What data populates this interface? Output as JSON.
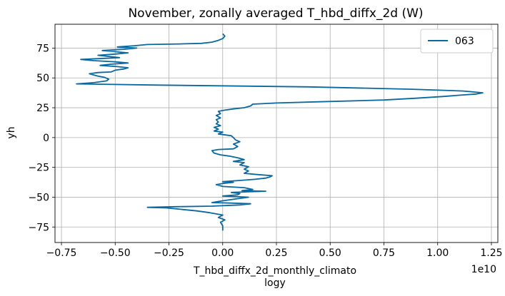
{
  "chart_data": {
    "type": "line",
    "title": "November, zonally averaged T_hbd_diffx_2d (W)",
    "xlabel": "T_hbd_diffx_2d_monthly_climato",
    "xlabel2": "logy",
    "ylabel": "yh",
    "x_offset_text": "1e10",
    "xlim": [
      -0.78,
      1.28
    ],
    "ylim": [
      -88,
      95
    ],
    "x_scale": 10000000000.0,
    "xticks": [
      -0.75,
      -0.5,
      -0.25,
      0.0,
      0.25,
      0.5,
      0.75,
      1.0,
      1.25
    ],
    "xtick_labels": [
      "−0.75",
      "−0.50",
      "−0.25",
      "0.00",
      "0.25",
      "0.50",
      "0.75",
      "1.00",
      "1.25"
    ],
    "yticks": [
      -75,
      -50,
      -25,
      0,
      25,
      50,
      75
    ],
    "ytick_labels": [
      "−75",
      "−50",
      "−25",
      "0",
      "25",
      "50",
      "75"
    ],
    "grid": true,
    "legend_position": "top-right",
    "series": [
      {
        "name": "063",
        "color": "#0868a0",
        "points": [
          [
            0.0,
            -78
          ],
          [
            0.0,
            -74
          ],
          [
            -0.01,
            -71
          ],
          [
            0.01,
            -69
          ],
          [
            -0.02,
            -67
          ],
          [
            0.0,
            -65
          ],
          [
            -0.06,
            -63
          ],
          [
            -0.12,
            -61.5
          ],
          [
            -0.26,
            -59
          ],
          [
            -0.35,
            -58.5
          ],
          [
            -0.22,
            -58
          ],
          [
            -0.05,
            -57.5
          ],
          [
            0.08,
            -56.5
          ],
          [
            0.13,
            -55.5
          ],
          [
            0.05,
            -55
          ],
          [
            -0.05,
            -54.5
          ],
          [
            0.0,
            -53
          ],
          [
            0.08,
            -51
          ],
          [
            0.12,
            -50
          ],
          [
            0.0,
            -49
          ],
          [
            0.07,
            -48
          ],
          [
            0.08,
            -47
          ],
          [
            0.04,
            -46
          ],
          [
            0.12,
            -45.5
          ],
          [
            0.2,
            -45
          ],
          [
            0.09,
            -44.5
          ],
          [
            0.14,
            -43.5
          ],
          [
            0.1,
            -42
          ],
          [
            0.0,
            -41
          ],
          [
            -0.03,
            -39.5
          ],
          [
            0.0,
            -38.5
          ],
          [
            0.05,
            -37.5
          ],
          [
            0.0,
            -37
          ],
          [
            0.08,
            -36
          ],
          [
            0.15,
            -35
          ],
          [
            0.2,
            -34
          ],
          [
            0.22,
            -33
          ],
          [
            0.23,
            -32
          ],
          [
            0.16,
            -31
          ],
          [
            0.1,
            -30
          ],
          [
            0.12,
            -28
          ],
          [
            0.1,
            -26.5
          ],
          [
            0.12,
            -24.5
          ],
          [
            0.08,
            -23
          ],
          [
            0.1,
            -21
          ],
          [
            0.05,
            -20
          ],
          [
            0.1,
            -18.5
          ],
          [
            0.07,
            -17
          ],
          [
            0.03,
            -15.5
          ],
          [
            -0.01,
            -14.5
          ],
          [
            -0.04,
            -13
          ],
          [
            -0.05,
            -11
          ],
          [
            -0.02,
            -10
          ],
          [
            0.05,
            -9.5
          ],
          [
            0.07,
            -7.5
          ],
          [
            0.05,
            -5.5
          ],
          [
            0.08,
            -3.5
          ],
          [
            0.06,
            -2
          ],
          [
            0.05,
            0
          ],
          [
            0.04,
            1.5
          ],
          [
            -0.02,
            3
          ],
          [
            0.0,
            4.5
          ],
          [
            -0.04,
            5.5
          ],
          [
            -0.02,
            7
          ],
          [
            -0.04,
            8.5
          ],
          [
            -0.01,
            10
          ],
          [
            -0.03,
            11.5
          ],
          [
            -0.02,
            13
          ],
          [
            -0.03,
            15
          ],
          [
            -0.01,
            16.5
          ],
          [
            -0.03,
            18.5
          ],
          [
            -0.01,
            20
          ],
          [
            -0.02,
            22
          ],
          [
            0.01,
            23
          ],
          [
            0.05,
            24
          ],
          [
            0.1,
            25
          ],
          [
            0.13,
            26.5
          ],
          [
            0.14,
            28
          ],
          [
            0.25,
            29
          ],
          [
            0.45,
            30
          ],
          [
            0.75,
            31.5
          ],
          [
            0.9,
            33
          ],
          [
            1.03,
            34.5
          ],
          [
            1.1,
            35.5
          ],
          [
            1.18,
            36.5
          ],
          [
            1.21,
            37.5
          ],
          [
            1.12,
            39
          ],
          [
            0.88,
            40.5
          ],
          [
            0.4,
            42.5
          ],
          [
            -0.3,
            44
          ],
          [
            -0.68,
            45
          ],
          [
            -0.6,
            46
          ],
          [
            -0.54,
            47.5
          ],
          [
            -0.53,
            49
          ],
          [
            -0.55,
            50.5
          ],
          [
            -0.58,
            51.5
          ],
          [
            -0.6,
            52.5
          ],
          [
            -0.62,
            53.5
          ],
          [
            -0.58,
            54.5
          ],
          [
            -0.52,
            55
          ],
          [
            -0.5,
            56.5
          ],
          [
            -0.46,
            57.5
          ],
          [
            -0.44,
            58.5
          ],
          [
            -0.49,
            59.5
          ],
          [
            -0.57,
            60.5
          ],
          [
            -0.52,
            61.5
          ],
          [
            -0.44,
            62.5
          ],
          [
            -0.5,
            63.5
          ],
          [
            -0.6,
            64.5
          ],
          [
            -0.66,
            65.5
          ],
          [
            -0.54,
            66.5
          ],
          [
            -0.48,
            67
          ],
          [
            -0.53,
            68
          ],
          [
            -0.58,
            69
          ],
          [
            -0.5,
            70
          ],
          [
            -0.44,
            71
          ],
          [
            -0.5,
            72
          ],
          [
            -0.56,
            73
          ],
          [
            -0.46,
            74
          ],
          [
            -0.4,
            75
          ],
          [
            -0.49,
            76
          ],
          [
            -0.41,
            77
          ],
          [
            -0.35,
            78
          ],
          [
            -0.2,
            78.5
          ],
          [
            -0.1,
            79
          ],
          [
            -0.05,
            80
          ],
          [
            -0.02,
            81.5
          ],
          [
            0.0,
            83
          ],
          [
            0.01,
            85
          ],
          [
            0.0,
            87
          ]
        ]
      }
    ]
  }
}
